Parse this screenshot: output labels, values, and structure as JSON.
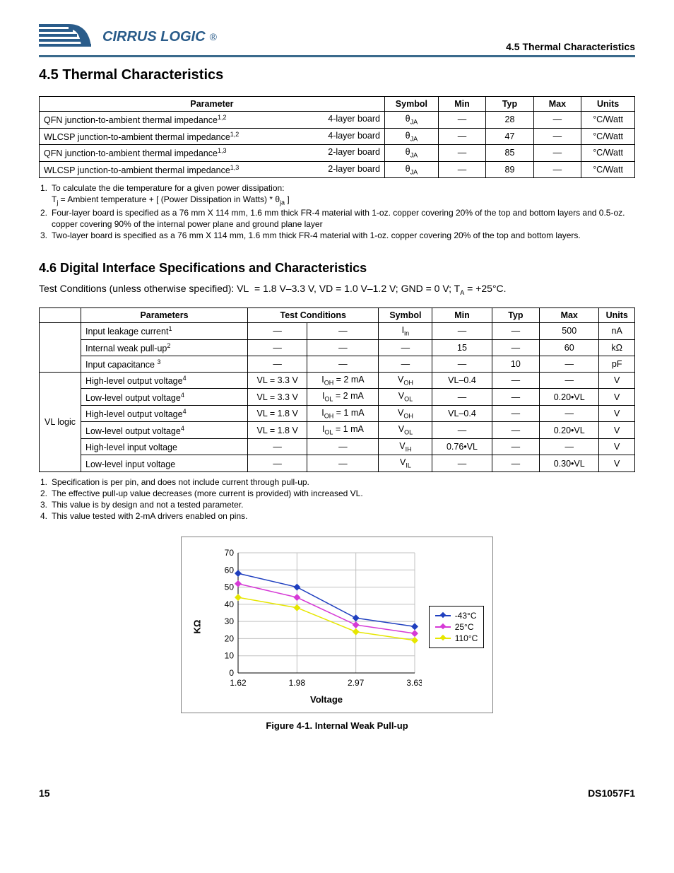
{
  "header": {
    "brand": "CIRRUS LOGIC",
    "right": "4.5 Thermal Characteristics"
  },
  "section45": {
    "title": "4.5  Thermal Characteristics",
    "table": {
      "headers": [
        "Parameter",
        "Symbol",
        "Min",
        "Typ",
        "Max",
        "Units"
      ],
      "rows": [
        {
          "param": "QFN junction-to-ambient thermal impedance",
          "sup": "1,2",
          "board": "4-layer board",
          "symbol": "θ",
          "symsub": "JA",
          "min": "—",
          "typ": "28",
          "max": "—",
          "units": "°C/Watt"
        },
        {
          "param": "WLCSP junction-to-ambient thermal impedance",
          "sup": "1,2",
          "board": "4-layer board",
          "symbol": "θ",
          "symsub": "JA",
          "min": "—",
          "typ": "47",
          "max": "—",
          "units": "°C/Watt"
        },
        {
          "param": "QFN junction-to-ambient thermal impedance",
          "sup": "1,3",
          "board": "2-layer board",
          "symbol": "θ",
          "symsub": "JA",
          "min": "—",
          "typ": "85",
          "max": "—",
          "units": "°C/Watt"
        },
        {
          "param": "WLCSP junction-to-ambient thermal impedance",
          "sup": "1,3",
          "board": "2-layer board",
          "symbol": "θ",
          "symsub": "JA",
          "min": "—",
          "typ": "89",
          "max": "—",
          "units": "°C/Watt"
        }
      ]
    },
    "notes": [
      {
        "n": "1.",
        "t": "To calculate the die temperature for a given power dissipation:"
      },
      {
        "n": "",
        "t": "Tj = Ambient temperature + [ (Power Dissipation in Watts) * θja ]",
        "sub": true
      },
      {
        "n": "2.",
        "t": "Four-layer board is specified as a 76 mm X 114 mm, 1.6 mm thick FR-4 material with 1-oz. copper covering 20% of the top and bottom layers and 0.5-oz. copper covering 90% of the internal power plane and ground plane layer"
      },
      {
        "n": "3.",
        "t": "Two-layer board is specified as a 76 mm X 114 mm, 1.6 mm thick FR-4 material with 1-oz. copper covering 20% of the top and bottom layers."
      }
    ]
  },
  "section46": {
    "title": "4.6  Digital Interface Specifications and Characteristics",
    "testcond": "Test Conditions (unless otherwise specified): VL  = 1.8 V–3.3 V, VD = 1.0 V–1.2 V; GND = 0 V; TA = +25°C.",
    "table": {
      "headers": [
        "",
        "Parameters",
        "Test Conditions",
        "Symbol",
        "Min",
        "Typ",
        "Max",
        "Units"
      ],
      "group_label": "VL logic",
      "rows": [
        {
          "g": "",
          "param": "Input leakage current",
          "sup": "1",
          "tc1": "—",
          "tc2": "—",
          "sym": "I",
          "symsub": "in",
          "min": "—",
          "typ": "—",
          "max": "500",
          "units": "nA"
        },
        {
          "g": "",
          "param": "Internal weak pull-up",
          "sup": "2",
          "tc1": "—",
          "tc2": "—",
          "sym": "—",
          "symsub": "",
          "min": "15",
          "typ": "—",
          "max": "60",
          "units": "kΩ"
        },
        {
          "g": "",
          "param": "Input capacitance ",
          "sup": "3",
          "tc1": "—",
          "tc2": "—",
          "sym": "—",
          "symsub": "",
          "min": "—",
          "typ": "10",
          "max": "—",
          "units": "pF"
        },
        {
          "g": "VL logic",
          "param": "High-level output voltage",
          "sup": "4",
          "tc1": "VL = 3.3 V",
          "tc2": "IOH = 2 mA",
          "sym": "V",
          "symsub": "OH",
          "min": "VL–0.4",
          "typ": "—",
          "max": "—",
          "units": "V"
        },
        {
          "g": "",
          "param": "Low-level output voltage",
          "sup": "4",
          "tc1": "VL = 3.3 V",
          "tc2": "IOL = 2 mA",
          "sym": "V",
          "symsub": "OL",
          "min": "—",
          "typ": "—",
          "max": "0.20•VL",
          "units": "V"
        },
        {
          "g": "",
          "param": "High-level output voltage",
          "sup": "4",
          "tc1": "VL = 1.8 V",
          "tc2": "IOH = 1 mA",
          "sym": "V",
          "symsub": "OH",
          "min": "VL–0.4",
          "typ": "—",
          "max": "—",
          "units": "V"
        },
        {
          "g": "",
          "param": "Low-level output voltage",
          "sup": "4",
          "tc1": "VL = 1.8 V",
          "tc2": "IOL = 1 mA",
          "sym": "V",
          "symsub": "OL",
          "min": "—",
          "typ": "—",
          "max": "0.20•VL",
          "units": "V"
        },
        {
          "g": "",
          "param": "High-level input voltage",
          "sup": "",
          "tc1": "—",
          "tc2": "—",
          "sym": "V",
          "symsub": "IH",
          "min": "0.76•VL",
          "typ": "—",
          "max": "—",
          "units": "V"
        },
        {
          "g": "",
          "param": "Low-level input voltage",
          "sup": "",
          "tc1": "—",
          "tc2": "—",
          "sym": "V",
          "symsub": "IL",
          "min": "—",
          "typ": "—",
          "max": "0.30•VL",
          "units": "V"
        }
      ]
    },
    "notes": [
      {
        "n": "1.",
        "t": "Specification is per pin, and does not include current through pull-up."
      },
      {
        "n": "2.",
        "t": "The effective pull-up value decreases (more current is provided) with increased VL."
      },
      {
        "n": "3.",
        "t": "This value is by design and not a tested parameter."
      },
      {
        "n": "4.",
        "t": "This value tested with 2-mA drivers enabled on pins."
      }
    ]
  },
  "chart": {
    "type": "line",
    "ylabel": "KΩ",
    "xlabel": "Voltage",
    "x_categories": [
      "1.62",
      "1.98",
      "2.97",
      "3.63"
    ],
    "y_ticks": [
      0,
      10,
      20,
      30,
      40,
      50,
      60,
      70
    ],
    "ylim": [
      0,
      70
    ],
    "grid_color": "#c0c0c0",
    "background": "#ffffff",
    "axis_color": "#000000",
    "tick_fontsize": 12,
    "label_fontsize": 13,
    "label_fontweight": "bold",
    "line_width": 1.5,
    "marker": "diamond",
    "marker_size": 5,
    "series": [
      {
        "name": "-43°C",
        "color": "#1f3fbf",
        "values": [
          58,
          50,
          32,
          27
        ]
      },
      {
        "name": "25°C",
        "color": "#d63ad6",
        "values": [
          52,
          44,
          28,
          23
        ]
      },
      {
        "name": "110°C",
        "color": "#e6e600",
        "values": [
          44,
          38,
          24,
          19
        ]
      }
    ],
    "legend": {
      "position": "right",
      "border_color": "#000",
      "items": [
        "-43°C",
        "25°C",
        "110°C"
      ]
    },
    "caption": "Figure 4-1. Internal Weak Pull-up"
  },
  "footer": {
    "page": "15",
    "doc": "DS1057F1"
  }
}
